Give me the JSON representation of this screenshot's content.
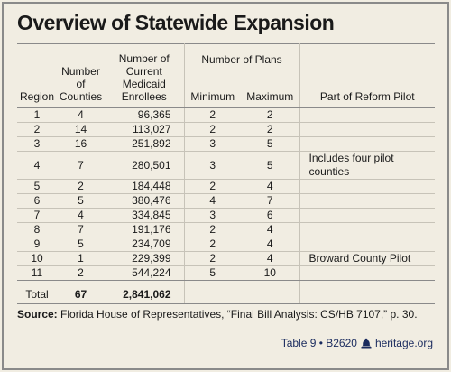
{
  "title": "Overview of Statewide Expansion",
  "table": {
    "headers": {
      "region": "Region",
      "counties": "Number of Counties",
      "enrollees": "Number of Current Medicaid Enrollees",
      "plans_group": "Number of Plans",
      "minimum": "Minimum",
      "maximum": "Maximum",
      "pilot": "Part of Reform Pilot"
    },
    "rows": [
      {
        "region": "1",
        "counties": "4",
        "enrollees": "96,365",
        "min": "2",
        "max": "2",
        "pilot": ""
      },
      {
        "region": "2",
        "counties": "14",
        "enrollees": "113,027",
        "min": "2",
        "max": "2",
        "pilot": ""
      },
      {
        "region": "3",
        "counties": "16",
        "enrollees": "251,892",
        "min": "3",
        "max": "5",
        "pilot": ""
      },
      {
        "region": "4",
        "counties": "7",
        "enrollees": "280,501",
        "min": "3",
        "max": "5",
        "pilot": "Includes four pilot counties"
      },
      {
        "region": "5",
        "counties": "2",
        "enrollees": "184,448",
        "min": "2",
        "max": "4",
        "pilot": ""
      },
      {
        "region": "6",
        "counties": "5",
        "enrollees": "380,476",
        "min": "4",
        "max": "7",
        "pilot": ""
      },
      {
        "region": "7",
        "counties": "4",
        "enrollees": "334,845",
        "min": "3",
        "max": "6",
        "pilot": ""
      },
      {
        "region": "8",
        "counties": "7",
        "enrollees": "191,176",
        "min": "2",
        "max": "4",
        "pilot": ""
      },
      {
        "region": "9",
        "counties": "5",
        "enrollees": "234,709",
        "min": "2",
        "max": "4",
        "pilot": ""
      },
      {
        "region": "10",
        "counties": "1",
        "enrollees": "229,399",
        "min": "2",
        "max": "4",
        "pilot": "Broward County Pilot"
      },
      {
        "region": "11",
        "counties": "2",
        "enrollees": "544,224",
        "min": "5",
        "max": "10",
        "pilot": ""
      }
    ],
    "total": {
      "label": "Total",
      "counties": "67",
      "enrollees": "2,841,062"
    }
  },
  "source": {
    "label": "Source:",
    "text": " Florida House of Representatives, “Final Bill Analysis: CS/HB 7107,” p. 30."
  },
  "footer": {
    "table_ref": "Table 9 • B2620",
    "site": "heritage.org",
    "icon": "heritage-bell-icon",
    "color": "#1a2b5e"
  },
  "colors": {
    "background": "#f1ede2",
    "frame": "#8a8a8a",
    "row_rule": "#c7c3b8"
  }
}
